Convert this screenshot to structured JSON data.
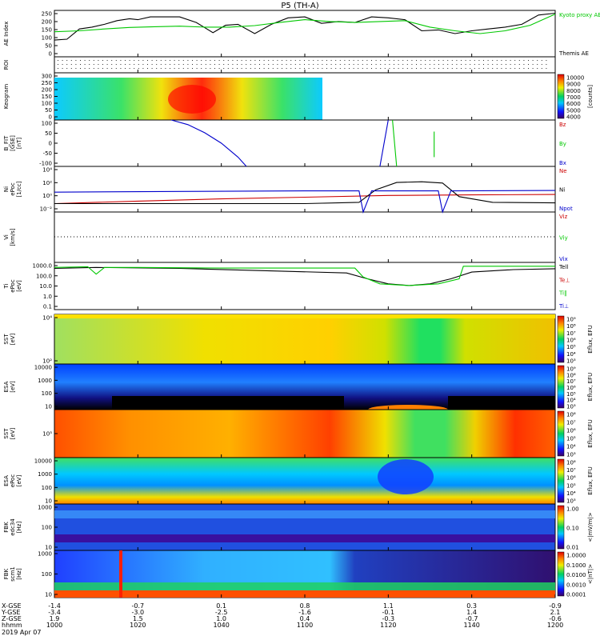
{
  "title": "P5 (TH-A)",
  "date_label": "2019 Apr 07",
  "chart_data": [
    {
      "type": "line",
      "panel": "ae",
      "ylabel": "AE Index",
      "ylim": [
        0,
        250
      ],
      "yticks": [
        "0",
        "50",
        "100",
        "150",
        "200",
        "250"
      ],
      "legend": [
        {
          "label": "Kyoto proxy AE",
          "color": "#00c800"
        },
        {
          "label": "Themis AE",
          "color": "#000000"
        }
      ],
      "series": [
        {
          "name": "Themis AE",
          "color": "#000000",
          "x": [
            "10:00",
            "10:03",
            "10:06",
            "10:09",
            "10:12",
            "10:15",
            "10:18",
            "10:20",
            "10:23",
            "10:26",
            "10:30",
            "10:34",
            "10:38",
            "10:41",
            "10:44",
            "10:48",
            "10:52",
            "10:56",
            "11:00",
            "11:04",
            "11:08",
            "11:12",
            "11:16",
            "11:20",
            "11:24",
            "11:28",
            "11:32",
            "11:36",
            "11:40",
            "11:44",
            "11:48",
            "11:52",
            "11:56",
            "12:00"
          ],
          "y": [
            90,
            95,
            150,
            160,
            175,
            195,
            205,
            200,
            215,
            215,
            215,
            185,
            130,
            170,
            175,
            125,
            175,
            210,
            215,
            180,
            190,
            185,
            215,
            210,
            200,
            140,
            145,
            125,
            140,
            150,
            160,
            175,
            225,
            235
          ]
        },
        {
          "name": "Kyoto proxy AE",
          "color": "#00c800",
          "x": [
            "10:00",
            "10:06",
            "10:12",
            "10:18",
            "10:24",
            "10:30",
            "10:36",
            "10:42",
            "10:48",
            "10:54",
            "11:00",
            "11:06",
            "11:12",
            "11:18",
            "11:24",
            "11:30",
            "11:36",
            "11:42",
            "11:48",
            "11:54",
            "12:00"
          ],
          "y": [
            135,
            140,
            150,
            158,
            162,
            165,
            160,
            160,
            168,
            185,
            200,
            190,
            185,
            190,
            195,
            160,
            140,
            125,
            140,
            170,
            230
          ]
        }
      ]
    },
    {
      "type": "heatmap",
      "panel": "roi",
      "ylabel": "ROI"
    },
    {
      "type": "heatmap",
      "panel": "keogram",
      "ylabel": "Keogram",
      "ylim": [
        0,
        300
      ],
      "yticks": [
        "0",
        "50",
        "100",
        "150",
        "200",
        "250",
        "300"
      ],
      "colorbar": {
        "ticks": [
          "10000",
          "9000",
          "8000",
          "7000",
          "6000",
          "5000",
          "4000"
        ],
        "label": "[counts]"
      }
    },
    {
      "type": "line",
      "panel": "bfield",
      "ylabel": "B_FIT\n[GSE]\n[nT]",
      "ylim": [
        -100,
        100
      ],
      "yticks": [
        "-100",
        "-50",
        "0",
        "50",
        "100"
      ],
      "legend": [
        {
          "label": "Bz",
          "color": "#cc0000"
        },
        {
          "label": "By",
          "color": "#00c800"
        },
        {
          "label": "Bx",
          "color": "#0000cc"
        }
      ],
      "series": [
        {
          "name": "Bx",
          "color": "#0000cc",
          "x": [
            "10:28",
            "10:32",
            "10:36",
            "10:40",
            "10:44",
            "10:46"
          ],
          "y": [
            100,
            80,
            45,
            0,
            -60,
            -100
          ]
        },
        {
          "name": "Bx",
          "color": "#0000cc",
          "x": [
            "11:18",
            "11:20"
          ],
          "y": [
            -100,
            100
          ]
        },
        {
          "name": "By",
          "color": "#00c800",
          "x": [
            "11:21",
            "11:22"
          ],
          "y": [
            100,
            -100
          ]
        },
        {
          "name": "By",
          "color": "#00c800",
          "x": [
            "11:31",
            "11:31"
          ],
          "y": [
            -60,
            50
          ]
        }
      ]
    },
    {
      "type": "line",
      "panel": "density",
      "ylabel": "Ni\nePoc\n[1/cc]",
      "yticks": [
        "10⁻²",
        "10⁰",
        "10²",
        "10⁴"
      ],
      "ylim_log": [
        -3,
        5
      ],
      "legend": [
        {
          "label": "Ne",
          "color": "#cc0000"
        },
        {
          "label": "Ni",
          "color": "#000000"
        },
        {
          "label": "Npot",
          "color": "#0000cc"
        }
      ],
      "series": [
        {
          "name": "Ne",
          "color": "#cc0000",
          "x": [
            "10:00",
            "10:20",
            "10:40",
            "11:00",
            "11:20",
            "11:40",
            "12:00"
          ],
          "y": [
            0.03,
            0.08,
            0.2,
            0.4,
            0.8,
            1.0,
            1.2
          ]
        },
        {
          "name": "Ni",
          "color": "#000000",
          "x": [
            "10:00",
            "10:30",
            "11:00",
            "11:13",
            "11:17",
            "11:22",
            "11:28",
            "11:33",
            "11:37",
            "11:45",
            "12:00"
          ],
          "y": [
            0.03,
            0.03,
            0.03,
            0.05,
            8,
            150,
            200,
            120,
            0.5,
            0.05,
            0.04
          ]
        },
        {
          "name": "Npot",
          "color": "#0000cc",
          "x": [
            "10:00",
            "10:30",
            "11:00",
            "11:13",
            "11:14",
            "11:16",
            "11:32",
            "11:33",
            "11:35",
            "12:00"
          ],
          "y": [
            3,
            4,
            5,
            5,
            0.001,
            5,
            5,
            0.001,
            5,
            6
          ]
        }
      ]
    },
    {
      "type": "line",
      "panel": "velocity",
      "ylabel": "Vi\n[km/s]",
      "legend": [
        {
          "label": "Viz",
          "color": "#cc0000"
        },
        {
          "label": "Viy",
          "color": "#00c800"
        },
        {
          "label": "Vix",
          "color": "#0000cc"
        }
      ]
    },
    {
      "type": "line",
      "panel": "temperature",
      "ylabel": "Ti\nePoc\n[eV]",
      "yticks": [
        "0.1",
        "1.0",
        "10.0",
        "100.0",
        "1000.0"
      ],
      "ylim_log": [
        -1.2,
        3.7
      ],
      "legend": [
        {
          "label": "Tell",
          "color": "#000000"
        },
        {
          "label": "Te⊥",
          "color": "#cc0000"
        },
        {
          "label": "Ti‖",
          "color": "#00c800"
        },
        {
          "label": "Ti⊥",
          "color": "#0000cc"
        }
      ],
      "series": [
        {
          "name": "Tell",
          "color": "#000000",
          "x": [
            "10:00",
            "10:10",
            "10:30",
            "10:50",
            "11:10",
            "11:15",
            "11:20",
            "11:25",
            "11:30",
            "11:35",
            "11:40",
            "11:50",
            "12:00"
          ],
          "y": [
            1200,
            1500,
            1200,
            700,
            400,
            100,
            30,
            20,
            30,
            100,
            500,
            900,
            1100
          ]
        },
        {
          "name": "Ti‖",
          "color": "#00c800",
          "x": [
            "10:00",
            "10:08",
            "10:10",
            "10:12",
            "10:20",
            "10:40",
            "11:00",
            "11:12",
            "11:14",
            "11:18",
            "11:25",
            "11:32",
            "11:37",
            "11:38",
            "11:50",
            "12:00"
          ],
          "y": [
            1500,
            1800,
            300,
            1500,
            1500,
            1300,
            1300,
            1300,
            150,
            30,
            20,
            30,
            100,
            2000,
            2000,
            2000
          ]
        }
      ]
    },
    {
      "type": "heatmap",
      "panel": "sst_e",
      "ylabel": "SST\n[eV]",
      "yticks": [
        "10²",
        "10⁴"
      ],
      "colorbar": {
        "ticks": [
          "10⁹",
          "10⁸",
          "10⁷",
          "10⁶",
          "10⁵",
          "10⁴",
          "10³"
        ],
        "label": "Eflux, EFU"
      }
    },
    {
      "type": "heatmap",
      "panel": "esa_e",
      "ylabel": "ESA\n[eV]",
      "yticks": [
        "10",
        "100",
        "1000",
        "10000"
      ],
      "colorbar": {
        "ticks": [
          "10⁹",
          "10⁸",
          "10⁷",
          "10⁶",
          "10⁵",
          "10⁴",
          "10³"
        ],
        "label": "Eflux, EFU"
      }
    },
    {
      "type": "heatmap",
      "panel": "sst_i",
      "ylabel": "SST\n[eV]",
      "yticks": [
        "10⁵"
      ],
      "colorbar": {
        "ticks": [
          "10⁸",
          "10⁷",
          "10⁶",
          "10⁵",
          "10⁴",
          "10³"
        ],
        "label": "Eflux, EFU"
      }
    },
    {
      "type": "heatmap",
      "panel": "esa_i",
      "ylabel": "ESA\nePoc\n[eV]",
      "yticks": [
        "10",
        "100",
        "1000",
        "10000"
      ],
      "colorbar": {
        "ticks": [
          "10⁸",
          "10⁷",
          "10⁶",
          "10⁵",
          "10⁴",
          "10³"
        ],
        "label": "Eflux, EFU"
      }
    },
    {
      "type": "heatmap",
      "panel": "fbk_e",
      "ylabel": "FBK\nedc34\n[Hz]",
      "yticks": [
        "10",
        "100",
        "1000"
      ],
      "colorbar": {
        "ticks": [
          "1.00",
          "0.10",
          "0.01"
        ],
        "label": "<|mV/m|>"
      }
    },
    {
      "type": "heatmap",
      "panel": "fbk_b",
      "ylabel": "FBK\nscm1\n[Hz]",
      "yticks": [
        "10",
        "100",
        "1000"
      ],
      "colorbar": {
        "ticks": [
          "1.0000",
          "0.1000",
          "0.0100",
          "0.0010",
          "0.0001"
        ],
        "label": "<|nT|>"
      }
    }
  ],
  "ephemeris": {
    "row_labels": [
      "X-GSE",
      "Y-GSE",
      "Z-GSE",
      "hhmm"
    ],
    "columns": [
      {
        "x": "-1.4",
        "y": "-3.4",
        "z": "1.9",
        "t": "1000"
      },
      {
        "x": "-0.7",
        "y": "-3.0",
        "z": "1.5",
        "t": "1020"
      },
      {
        "x": "0.1",
        "y": "-2.5",
        "z": "1.0",
        "t": "1040"
      },
      {
        "x": "0.8",
        "y": "-1.6",
        "z": "0.4",
        "t": "1100"
      },
      {
        "x": "1.1",
        "y": "-0.1",
        "z": "-0.3",
        "t": "1120"
      },
      {
        "x": "0.3",
        "y": "1.4",
        "z": "-0.7",
        "t": "1140"
      },
      {
        "x": "-0.9",
        "y": "2.1",
        "z": "-0.6",
        "t": "1200"
      }
    ]
  }
}
